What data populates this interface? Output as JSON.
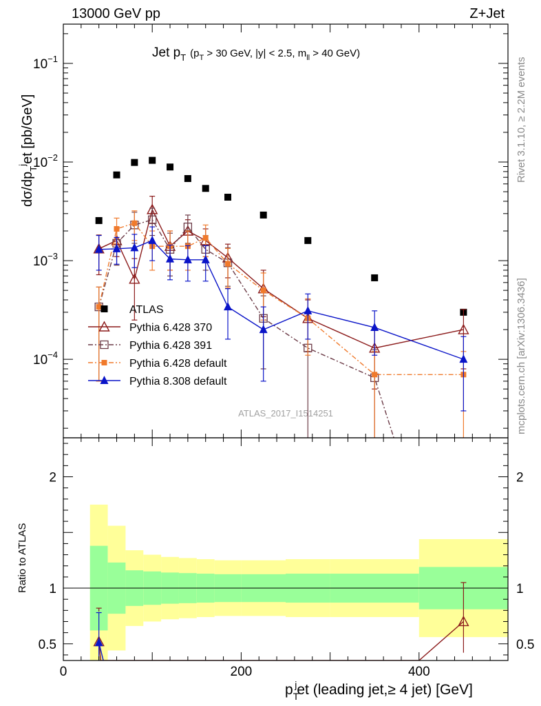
{
  "header": {
    "left": "13000 GeV pp",
    "right": "Z+Jet"
  },
  "plot_title": {
    "main": "Jet p",
    "main_sub": "T",
    "cuts_open": "(p",
    "cuts_open_sub": "T",
    "cuts_mid": " > 30 GeV, |y| < 2.5, m",
    "cuts_mid_sub": "ll",
    "cuts_close": " > 40 GeV)"
  },
  "side_text": {
    "rivet": "Rivet 3.1.10, ≥ 2.2M events",
    "mcplots": "mcplots.cern.ch [arXiv:1306.3436]"
  },
  "watermark": "ATLAS_2017_I1514251",
  "axes": {
    "ylabel_main": "dσ/dp",
    "ylabel_main_sub": "T",
    "ylabel_main_sup": "j",
    "ylabel_main_rest": "et [pb/GeV]",
    "ylabel_ratio": "Ratio to ATLAS",
    "xlabel": "p",
    "xlabel_sub": "T",
    "xlabel_sup": "j",
    "xlabel_rest": "et (leading jet,≥ 4 jet) [GeV]"
  },
  "chart_data": {
    "type": "scatter",
    "x_range": [
      0,
      500
    ],
    "y_range_main": [
      1.6e-05,
      0.25
    ],
    "y_scale_main": "log",
    "y_range_ratio": [
      0.35,
      2.35
    ],
    "x_ticks": [
      {
        "v": 0,
        "label": "0"
      },
      {
        "v": 200,
        "label": "200"
      },
      {
        "v": 400,
        "label": "400"
      }
    ],
    "y_ticks_main": [
      {
        "v": 0.1,
        "base": "10",
        "exp": "−1"
      },
      {
        "v": 0.01,
        "base": "10",
        "exp": "−2"
      },
      {
        "v": 0.001,
        "base": "10",
        "exp": "−3"
      },
      {
        "v": 0.0001,
        "base": "10",
        "exp": "−4"
      }
    ],
    "y_ticks_ratio": [
      {
        "v": 0.5,
        "label": "0.5"
      },
      {
        "v": 1,
        "label": "1"
      },
      {
        "v": 2,
        "label": "2"
      }
    ],
    "legend_position": "center-left",
    "bins": [
      [
        30,
        50
      ],
      [
        50,
        70
      ],
      [
        70,
        90
      ],
      [
        90,
        110
      ],
      [
        110,
        130
      ],
      [
        130,
        150
      ],
      [
        150,
        170
      ],
      [
        170,
        200
      ],
      [
        200,
        250
      ],
      [
        250,
        300
      ],
      [
        300,
        400
      ],
      [
        400,
        500
      ]
    ],
    "series": [
      {
        "name": "ATLAS",
        "color": "#000000",
        "marker": "square-filled",
        "line": "none",
        "x": [
          40,
          60,
          80,
          100,
          120,
          140,
          160,
          185,
          225,
          275,
          350,
          450
        ],
        "y": [
          0.00255,
          0.0074,
          0.0099,
          0.0104,
          0.0089,
          0.0068,
          0.0054,
          0.0044,
          0.0029,
          0.0016,
          0.00067,
          0.0003
        ],
        "err_lo": [
          8e-05,
          0.0002,
          0.0003,
          0.0003,
          0.0002,
          0.0002,
          0.00015,
          0.0001,
          0.0001,
          5e-05,
          3e-05,
          2e-05
        ],
        "err_hi": [
          8e-05,
          0.0002,
          0.0003,
          0.0003,
          0.0002,
          0.0002,
          0.00015,
          0.0001,
          0.0001,
          5e-05,
          3e-05,
          2e-05
        ]
      },
      {
        "name": "Pythia 6.428 370",
        "color": "#8B1A1A",
        "marker": "triangle-open",
        "line": "solid",
        "x": [
          40,
          60,
          80,
          100,
          120,
          140,
          160,
          185,
          225,
          275,
          350,
          450
        ],
        "y": [
          0.00132,
          0.0016,
          0.00065,
          0.0033,
          0.0014,
          0.002,
          0.0016,
          0.00107,
          0.00052,
          0.00026,
          0.00013,
          0.0002
        ],
        "err_lo": [
          0.0006,
          0.0005,
          0.0004,
          0.0009,
          0.0006,
          0.0006,
          0.0005,
          0.0004,
          0.00025,
          0.00014,
          8e-05,
          0.00012
        ],
        "err_hi": [
          0.0005,
          0.0005,
          0.0004,
          0.0012,
          0.0006,
          0.0006,
          0.0005,
          0.0004,
          0.00028,
          0.00014,
          8e-05,
          0.00012
        ]
      },
      {
        "name": "Pythia 6.428 391",
        "color": "#6B3A46",
        "marker": "square-open",
        "line": "dashdot",
        "x": [
          40,
          60,
          80,
          100,
          120,
          140,
          160,
          185,
          225,
          275,
          350,
          450
        ],
        "y": [
          0.00034,
          0.0015,
          0.0023,
          0.0026,
          0.0013,
          0.0022,
          0.0013,
          0.00095,
          0.00026,
          0.00013,
          6.5e-05,
          1e-07
        ],
        "err_lo": [
          0.00028,
          0.0006,
          0.0008,
          0.0008,
          0.0006,
          0.0007,
          0.0005,
          0.0004,
          0.00018,
          0.00012,
          6e-05,
          0
        ],
        "err_hi": [
          0.0002,
          0.0006,
          0.0008,
          0.0008,
          0.0006,
          0.0007,
          0.0005,
          0.0004,
          0.00018,
          0.00012,
          6e-05,
          0
        ]
      },
      {
        "name": "Pythia 6.428 default",
        "color": "#F07A2C",
        "marker": "square-filled",
        "line": "dashdot",
        "x": [
          40,
          60,
          80,
          100,
          120,
          140,
          160,
          185,
          225,
          275,
          350,
          450
        ],
        "y": [
          0.00034,
          0.0021,
          0.0024,
          0.0014,
          0.0014,
          0.0014,
          0.0017,
          0.00093,
          0.0005,
          0.00026,
          7e-05,
          7e-05
        ],
        "err_lo": [
          0.00028,
          0.0006,
          0.0008,
          0.0006,
          0.0006,
          0.0006,
          0.0006,
          0.0004,
          0.00025,
          0.00015,
          6.5e-05,
          6.5e-05
        ],
        "err_hi": [
          0.0002,
          0.0006,
          0.0008,
          0.0006,
          0.0006,
          0.0006,
          0.0006,
          0.0004,
          0.00025,
          0.00015,
          5e-05,
          5e-05
        ]
      },
      {
        "name": "Pythia 8.308 default",
        "color": "#0A14C8",
        "marker": "triangle-filled",
        "line": "solid",
        "x": [
          40,
          60,
          80,
          100,
          120,
          140,
          160,
          185,
          225,
          275,
          350,
          450
        ],
        "y": [
          0.0013,
          0.00132,
          0.00135,
          0.0016,
          0.00104,
          0.00102,
          0.00102,
          0.00034,
          0.0002,
          0.00031,
          0.00021,
          0.0001
        ],
        "err_lo": [
          0.0005,
          0.0004,
          0.0005,
          0.0006,
          0.0004,
          0.0004,
          0.0004,
          0.00018,
          0.00014,
          0.00015,
          0.0001,
          7e-05
        ],
        "err_hi": [
          0.0005,
          0.0004,
          0.0005,
          0.0006,
          0.0004,
          0.0004,
          0.0004,
          0.00018,
          0.00014,
          0.00015,
          0.0001,
          7e-05
        ]
      }
    ],
    "ratio_band_inner": [
      [
        0.62,
        1.38
      ],
      [
        0.77,
        1.23
      ],
      [
        0.84,
        1.16
      ],
      [
        0.85,
        1.15
      ],
      [
        0.86,
        1.14
      ],
      [
        0.865,
        1.135
      ],
      [
        0.87,
        1.13
      ],
      [
        0.875,
        1.125
      ],
      [
        0.875,
        1.125
      ],
      [
        0.87,
        1.13
      ],
      [
        0.87,
        1.13
      ],
      [
        0.81,
        1.19
      ]
    ],
    "ratio_band_outer": [
      [
        0.3,
        1.75
      ],
      [
        0.44,
        1.56
      ],
      [
        0.66,
        1.34
      ],
      [
        0.7,
        1.3
      ],
      [
        0.72,
        1.28
      ],
      [
        0.73,
        1.27
      ],
      [
        0.74,
        1.26
      ],
      [
        0.75,
        1.25
      ],
      [
        0.75,
        1.25
      ],
      [
        0.74,
        1.26
      ],
      [
        0.74,
        1.26
      ],
      [
        0.56,
        1.44
      ]
    ],
    "ratio_series": [
      {
        "name": "Pythia 6.428 370",
        "color": "#8B1A1A",
        "marker": "triangle-open",
        "x": [
          40,
          42,
          400,
          450
        ],
        "y": [
          0.52,
          0.35,
          0.35,
          0.7
        ],
        "err": [
          [
            0.79,
            0.82
          ],
          null,
          null,
          [
            0.42,
            1.05
          ]
        ]
      },
      {
        "name": "Pythia 8.308 default",
        "color": "#0A14C8",
        "marker": "triangle-filled",
        "x": [
          40,
          45
        ],
        "y": [
          0.51,
          0.35
        ],
        "err": [
          [
            0.35,
            0.78
          ],
          null
        ]
      }
    ]
  }
}
